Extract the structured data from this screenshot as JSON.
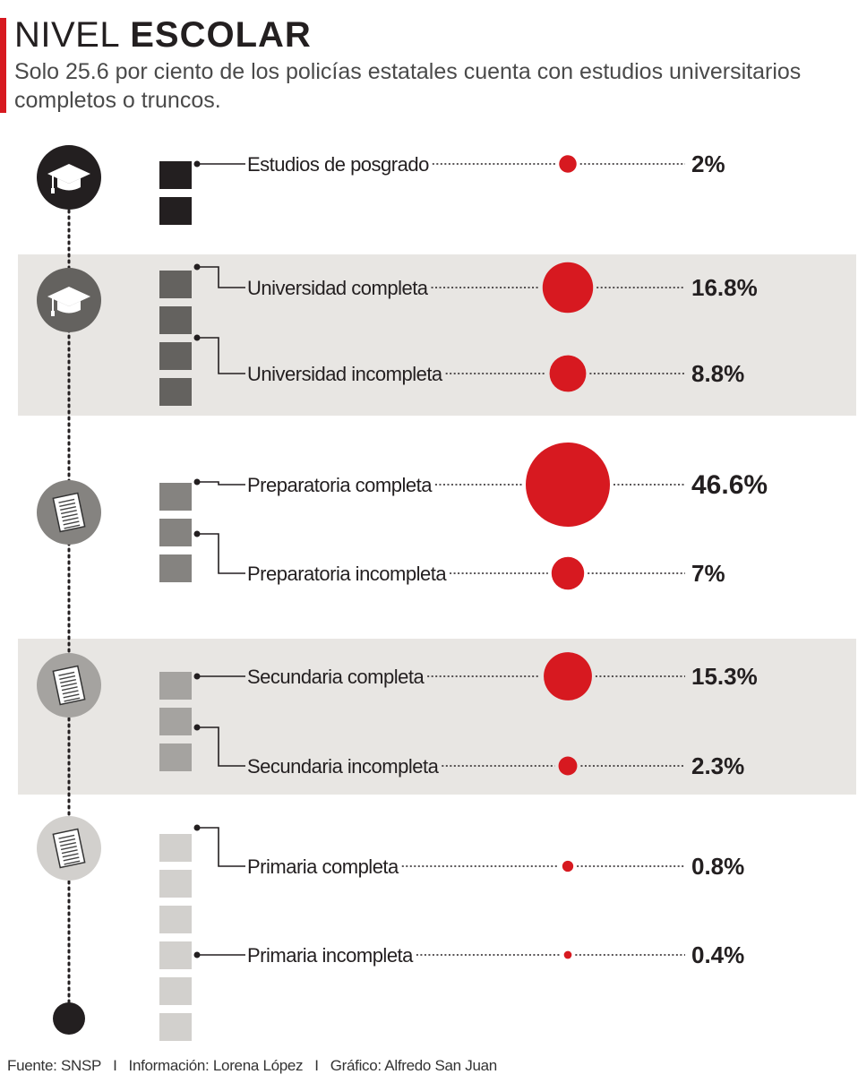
{
  "header": {
    "title_light": "NIVEL",
    "title_bold": "ESCOLAR",
    "subtitle": "Solo 25.6 por ciento de los policías estatales cuenta con estudios universitarios completos o truncos."
  },
  "colors": {
    "accent": "#d71920",
    "band": "#e8e6e3",
    "level_posgrado": "#231f20",
    "level_universidad": "#64625f",
    "level_preparatoria": "#858380",
    "level_secundaria": "#a5a3a0",
    "level_primaria": "#d2d0cd"
  },
  "chart_data": {
    "type": "bubble",
    "unit": "%",
    "groups": [
      {
        "level": "posgrado",
        "icon": "graduation-cap-icon",
        "color": "#231f20",
        "text_color": "#ffffff",
        "banded": false,
        "blocks": 2,
        "items": [
          {
            "label": "Estudios de posgrado",
            "value": 2,
            "display": "2%"
          }
        ]
      },
      {
        "level": "universidad",
        "icon": "graduation-cap-icon",
        "color": "#64625f",
        "text_color": "#ffffff",
        "banded": true,
        "blocks": 4,
        "items": [
          {
            "label": "Universidad completa",
            "value": 16.8,
            "display": "16.8%"
          },
          {
            "label": "Universidad incompleta",
            "value": 8.8,
            "display": "8.8%"
          }
        ]
      },
      {
        "level": "preparatoria",
        "icon": "document-icon",
        "color": "#858380",
        "text_color": "#ffffff",
        "banded": false,
        "blocks": 3,
        "items": [
          {
            "label": "Preparatoria completa",
            "value": 46.6,
            "display": "46.6%"
          },
          {
            "label": "Preparatoria incompleta",
            "value": 7,
            "display": "7%"
          }
        ]
      },
      {
        "level": "secundaria",
        "icon": "document-icon",
        "color": "#a5a3a0",
        "text_color": "#ffffff",
        "banded": true,
        "blocks": 3,
        "items": [
          {
            "label": "Secundaria completa",
            "value": 15.3,
            "display": "15.3%"
          },
          {
            "label": "Secundaria incompleta",
            "value": 2.3,
            "display": "2.3%"
          }
        ]
      },
      {
        "level": "primaria",
        "icon": "document-icon",
        "color": "#d2d0cd",
        "text_color": "#ffffff",
        "banded": false,
        "blocks": 6,
        "items": [
          {
            "label": "Primaria completa",
            "value": 0.8,
            "display": "0.8%"
          },
          {
            "label": "Primaria incompleta",
            "value": 0.4,
            "display": "0.4%"
          }
        ]
      }
    ]
  },
  "footer": {
    "source": "Fuente: SNSP",
    "info": "Información: Lorena López",
    "graphic": "Gráfico: Alfredo San Juan",
    "separator": "I"
  }
}
